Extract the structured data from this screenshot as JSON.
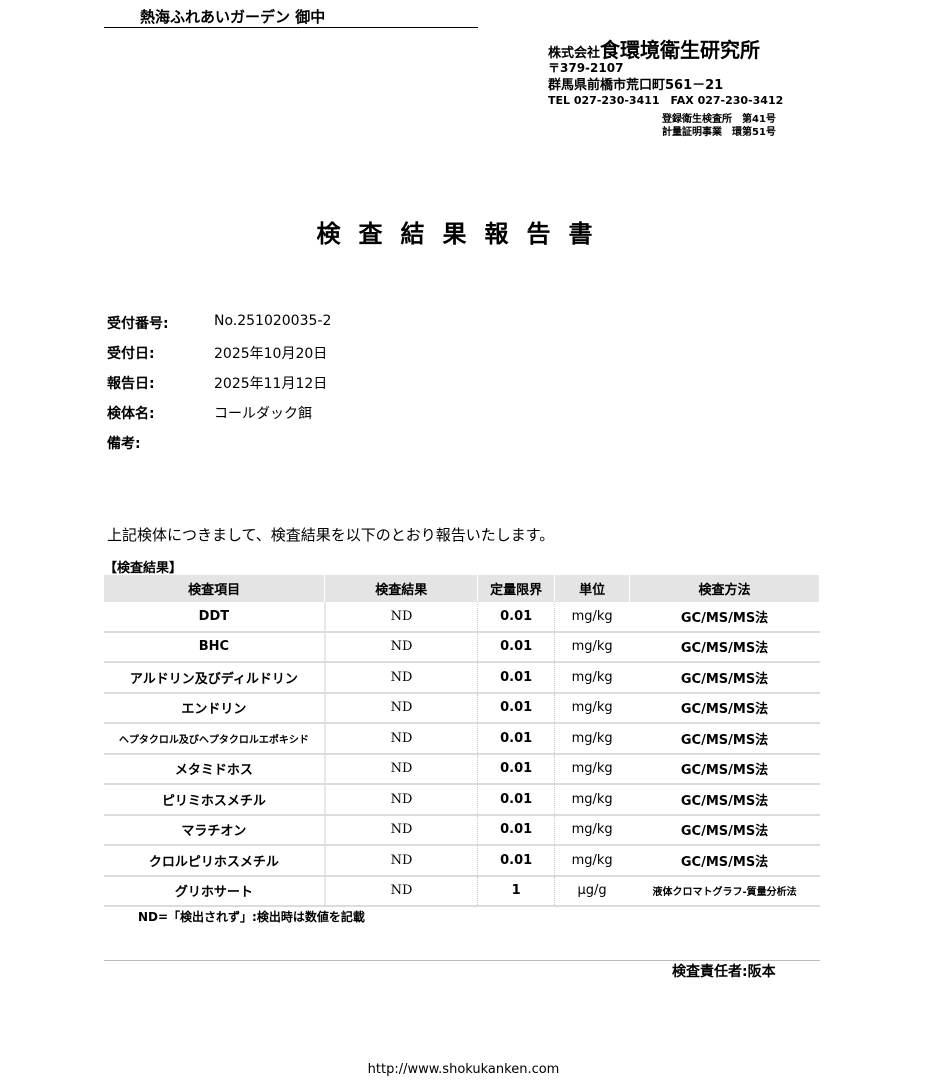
{
  "addressee": "熱海ふれあいガーデン 御中",
  "company": {
    "prefix": "株式会社",
    "name": "食環境衛生研究所",
    "postal": "〒379-2107",
    "address": "群馬県前橋市荒口町561－21",
    "phone": "TEL 027-230-3411　FAX 027-230-3412",
    "reg1": "登録衛生検査所　第41号",
    "reg2": "計量証明事業　環第51号"
  },
  "title": "検査結果報告書",
  "info": [
    {
      "label": "受付番号:",
      "value": "No.251020035-2"
    },
    {
      "label": "受付日:",
      "value": "2025年10月20日"
    },
    {
      "label": "報告日:",
      "value": "2025年11月12日"
    },
    {
      "label": "検体名:",
      "value": "コールダック餌"
    },
    {
      "label": "備考:",
      "value": ""
    }
  ],
  "intro": "上記検体につきまして、検査結果を以下のとおり報告いたします。",
  "section": "【検査結果】",
  "table": {
    "headers": [
      "検査項目",
      "検査結果",
      "定量限界",
      "単位",
      "検査方法"
    ],
    "rows": [
      [
        "DDT",
        "ND",
        "0.01",
        "mg/kg",
        "GC/MS/MS法"
      ],
      [
        "BHC",
        "ND",
        "0.01",
        "mg/kg",
        "GC/MS/MS法"
      ],
      [
        "アルドリン及びディルドリン",
        "ND",
        "0.01",
        "mg/kg",
        "GC/MS/MS法"
      ],
      [
        "エンドリン",
        "ND",
        "0.01",
        "mg/kg",
        "GC/MS/MS法"
      ],
      [
        "ヘプタクロル及びヘプタクロルエポキシド",
        "ND",
        "0.01",
        "mg/kg",
        "GC/MS/MS法"
      ],
      [
        "メタミドホス",
        "ND",
        "0.01",
        "mg/kg",
        "GC/MS/MS法"
      ],
      [
        "ピリミホスメチル",
        "ND",
        "0.01",
        "mg/kg",
        "GC/MS/MS法"
      ],
      [
        "マラチオン",
        "ND",
        "0.01",
        "mg/kg",
        "GC/MS/MS法"
      ],
      [
        "クロルピリホスメチル",
        "ND",
        "0.01",
        "mg/kg",
        "GC/MS/MS法"
      ],
      [
        "グリホサート",
        "ND",
        "1",
        "μg/g",
        "液体クロマトグラフ-質量分析法"
      ]
    ]
  },
  "note": "ND=「検出されず」:検出時は数値を記載",
  "responsible": "検査責任者:阪本",
  "url": "http://www.shokukanken.com"
}
